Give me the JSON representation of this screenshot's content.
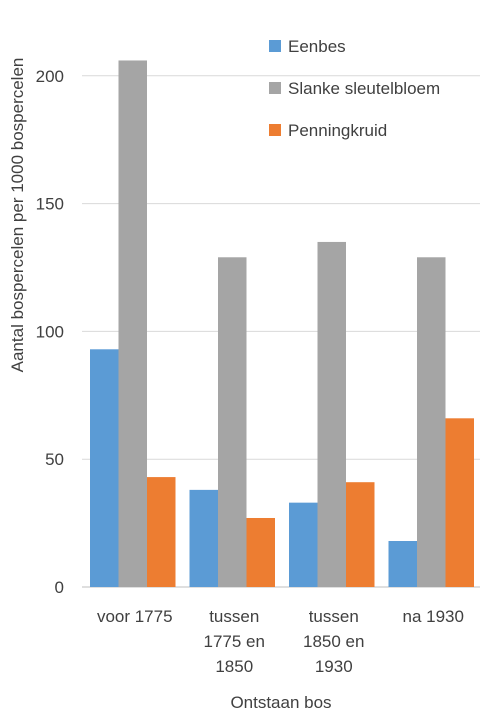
{
  "chart_data": {
    "type": "bar",
    "categories": [
      [
        "voor 1775"
      ],
      [
        "tussen",
        "1775 en",
        "1850"
      ],
      [
        "tussen",
        "1850 en",
        "1930"
      ],
      [
        "na 1930"
      ]
    ],
    "series": [
      {
        "name": "Eenbes",
        "color": "#5b9bd5",
        "values": [
          93,
          38,
          33,
          18
        ]
      },
      {
        "name": "Slanke sleutelbloem",
        "color": "#a5a5a5",
        "values": [
          206,
          129,
          135,
          129
        ]
      },
      {
        "name": "Penningkruid",
        "color": "#ed7d31",
        "values": [
          43,
          27,
          41,
          66
        ]
      }
    ],
    "xlabel": "Ontstaan bos",
    "ylabel": "Aantal bospercelen per 1000 bospercelen",
    "ylim": [
      0,
      210
    ],
    "yticks": [
      0,
      50,
      100,
      150,
      200
    ],
    "grid": true,
    "legend": "top-right"
  }
}
